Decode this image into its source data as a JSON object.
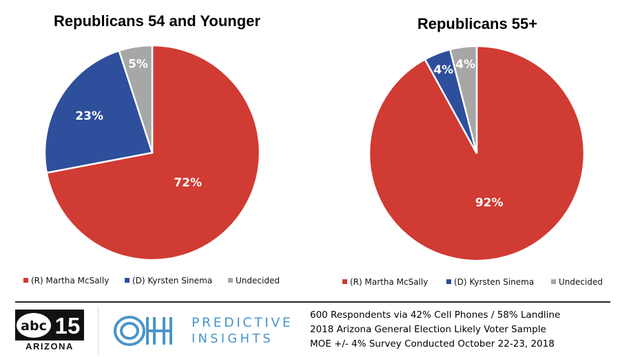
{
  "chart_data": [
    {
      "type": "pie",
      "title": "Republicans 54 and Younger",
      "categories": [
        "(R) Martha McSally",
        "(D) Kyrsten Sinema",
        "Undecided"
      ],
      "values": [
        72,
        23,
        5
      ],
      "labels": [
        "72%",
        "23%",
        "5%"
      ],
      "colors": [
        "#d03b33",
        "#2e4f9b",
        "#a7a7a7"
      ],
      "label_colors": [
        "#ffffff",
        "#ffffff",
        "#ffffff"
      ],
      "legend_placement": "bottom"
    },
    {
      "type": "pie",
      "title": "Republicans 55+",
      "categories": [
        "(R) Martha McSally",
        "(D) Kyrsten Sinema",
        "Undecided"
      ],
      "values": [
        92,
        4,
        4
      ],
      "labels": [
        "92%",
        "4%",
        "4%"
      ],
      "colors": [
        "#d03b33",
        "#2e4f9b",
        "#a7a7a7"
      ],
      "label_colors": [
        "#ffffff",
        "#ffffff",
        "#ffffff"
      ],
      "legend_placement": "bottom"
    }
  ],
  "footer": {
    "abc_logo": {
      "top": "abc",
      "number": "15",
      "station": "ARIZONA"
    },
    "brand_line1": "PREDICTIVE",
    "brand_line2": "INSIGHTS",
    "brand_color": "#4a95c9",
    "notes": [
      "600 Respondents via 42% Cell Phones / 58% Landline",
      "2018 Arizona General Election Likely Voter Sample",
      "MOE +/- 4% Survey Conducted October 22-23, 2018"
    ]
  }
}
